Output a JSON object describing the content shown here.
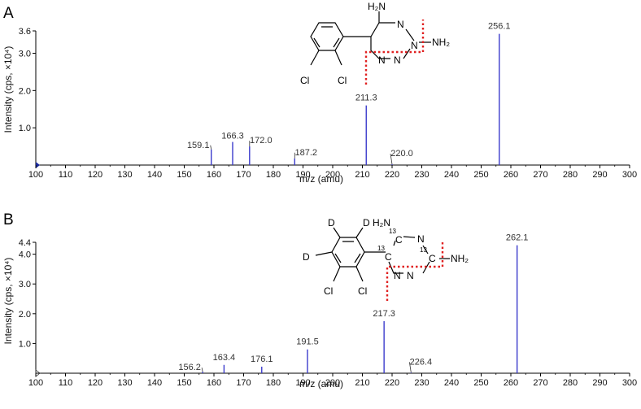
{
  "chart_data": [
    {
      "type": "bar",
      "panel_label": "A",
      "xlabel": "m/z (amu)",
      "ylabel": "Intensity (cps, ×10⁴)",
      "xlim": [
        100,
        300
      ],
      "ylim": [
        0,
        3.6
      ],
      "xticks": [
        100,
        110,
        120,
        130,
        140,
        150,
        160,
        170,
        180,
        190,
        200,
        210,
        220,
        230,
        240,
        250,
        260,
        270,
        280,
        290,
        300
      ],
      "yticks": [
        1.0,
        2.0,
        3.0,
        3.6
      ],
      "ytick_labels": [
        "1.0",
        "2.0",
        "3.0",
        "3.6"
      ],
      "series": [
        {
          "color": "#3b3bcc",
          "points": [
            {
              "x": 159.1,
              "y": 0.42,
              "label": "159.1"
            },
            {
              "x": 166.3,
              "y": 0.62,
              "label": "166.3"
            },
            {
              "x": 172.0,
              "y": 0.5,
              "label": "172.0"
            },
            {
              "x": 187.2,
              "y": 0.18,
              "label": "187.2"
            },
            {
              "x": 211.3,
              "y": 1.6,
              "label": "211.3"
            },
            {
              "x": 220.0,
              "y": 0.02,
              "label": "220.0"
            },
            {
              "x": 256.1,
              "y": 3.52,
              "label": "256.1"
            }
          ]
        }
      ],
      "structure": {
        "atoms": {
          "h2n_top": "H₂N",
          "n1": "N",
          "n2": "N",
          "nh2_right": "NH₂",
          "n3": "N",
          "n4": "N",
          "cl1": "Cl",
          "cl2": "Cl"
        }
      }
    },
    {
      "type": "bar",
      "panel_label": "B",
      "xlabel": "m/z (amu)",
      "ylabel": "Intensity (cps, ×10⁴)",
      "xlim": [
        100,
        300
      ],
      "ylim": [
        0,
        4.4
      ],
      "xticks": [
        100,
        110,
        120,
        130,
        140,
        150,
        160,
        170,
        180,
        190,
        200,
        210,
        220,
        230,
        240,
        250,
        260,
        270,
        280,
        290,
        300
      ],
      "yticks": [
        1.0,
        2.0,
        3.0,
        4.0,
        4.4
      ],
      "ytick_labels": [
        "1.0",
        "2.0",
        "3.0",
        "4.0",
        "4.4"
      ],
      "series": [
        {
          "color": "#3b3bcc",
          "points": [
            {
              "x": 156.2,
              "y": 0.05,
              "label": "156.2"
            },
            {
              "x": 163.4,
              "y": 0.28,
              "label": "163.4"
            },
            {
              "x": 176.1,
              "y": 0.22,
              "label": "176.1"
            },
            {
              "x": 191.5,
              "y": 0.8,
              "label": "191.5"
            },
            {
              "x": 217.3,
              "y": 1.75,
              "label": "217.3"
            },
            {
              "x": 226.4,
              "y": 0.02,
              "label": "226.4"
            },
            {
              "x": 262.1,
              "y": 4.3,
              "label": "262.1"
            }
          ]
        }
      ],
      "structure": {
        "atoms": {
          "d1": "D",
          "d2": "D",
          "d3": "D",
          "h2n_top": "H₂N",
          "n1": "N",
          "nh2_right": "NH₂",
          "n3": "N",
          "n4": "N",
          "cl1": "Cl",
          "cl2": "Cl",
          "c13_a": "C",
          "c13_b": "C",
          "c13_c": "C",
          "iso_a": "13",
          "iso_b": "13",
          "iso_c": "13"
        }
      }
    }
  ]
}
